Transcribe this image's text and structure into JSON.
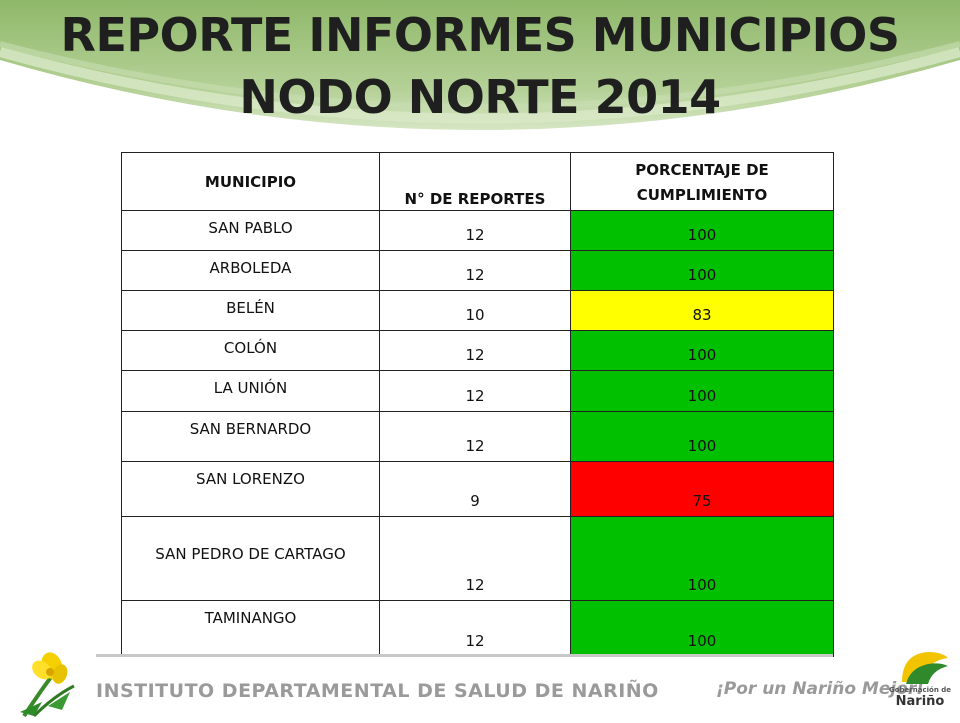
{
  "title": {
    "line1": "REPORTE INFORMES MUNICIPIOS",
    "line2": "NODO NORTE 2014"
  },
  "table": {
    "headers": {
      "municipio": "MUNICIPIO",
      "reportes": "N° DE REPORTES",
      "porcentaje_line1": "PORCENTAJE DE",
      "porcentaje_line2": "CUMPLIMIENTO"
    },
    "rows": [
      {
        "municipio": "SAN PABLO",
        "reportes": "12",
        "porcentaje": "100",
        "status": "green"
      },
      {
        "municipio": "ARBOLEDA",
        "reportes": "12",
        "porcentaje": "100",
        "status": "green"
      },
      {
        "municipio": "BELÉN",
        "reportes": "10",
        "porcentaje": "83",
        "status": "yellow"
      },
      {
        "municipio": "COLÓN",
        "reportes": "12",
        "porcentaje": "100",
        "status": "green"
      },
      {
        "municipio": "LA UNIÓN",
        "reportes": "12",
        "porcentaje": "100",
        "status": "green"
      },
      {
        "municipio": "SAN BERNARDO",
        "reportes": "12",
        "porcentaje": "100",
        "status": "green"
      },
      {
        "municipio": "SAN LORENZO",
        "reportes": "9",
        "porcentaje": "75",
        "status": "red"
      },
      {
        "municipio": "SAN PEDRO DE CARTAGO",
        "reportes": "12",
        "porcentaje": "100",
        "status": "green"
      },
      {
        "municipio": "TAMINANGO",
        "reportes": "12",
        "porcentaje": "100",
        "status": "green"
      }
    ],
    "status_colors": {
      "green": "#00c000",
      "yellow": "#ffff00",
      "red": "#ff0000"
    }
  },
  "footer": {
    "institution": "INSTITUTO DEPARTAMENTAL DE SALUD DE NARIÑO",
    "slogan": "¡Por un Nariño Mejor!",
    "logo_left": "flower-logo-icon",
    "logo_right_small": "Gobernación de",
    "logo_right_big": "Nariño"
  },
  "colors": {
    "header_green": "#a9c98a",
    "title_text": "#1f1f1f",
    "footer_gray": "#9a9a9a"
  }
}
